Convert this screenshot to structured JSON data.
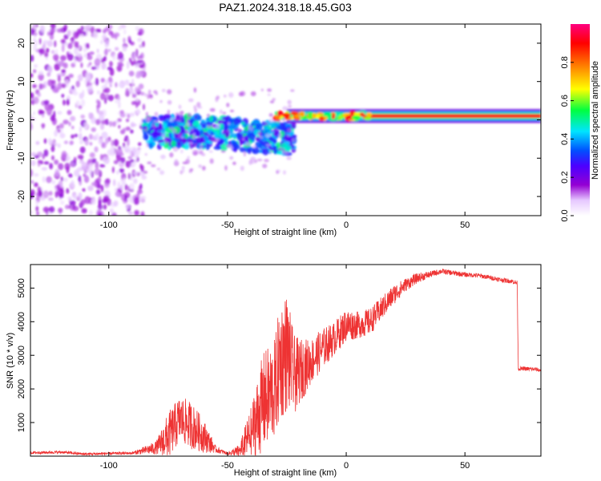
{
  "title": "PAZ1.2024.318.18.45.G03",
  "chart_data": [
    {
      "type": "heatmap",
      "xlabel": "Height of straight line (km)",
      "ylabel": "Frequency (Hz)",
      "xlim": [
        -133,
        82
      ],
      "ylim": [
        -25,
        25
      ],
      "xticks": [
        -100,
        -50,
        0,
        50
      ],
      "yticks": [
        -20,
        -10,
        0,
        10,
        20
      ],
      "colorbar": {
        "label": "Normalized spectral amplitude",
        "range": [
          0,
          1
        ],
        "ticks": [
          0,
          0.2,
          0.4,
          0.6,
          0.8
        ],
        "tick_labels": [
          "0.0",
          "0.2",
          "0.4",
          "0.6",
          "0.8"
        ],
        "colormap": [
          "#ffffff",
          "#9400d3",
          "#4b00ff",
          "#0050ff",
          "#00e5ff",
          "#00ff40",
          "#ffff00",
          "#ff8000",
          "#ff0000",
          "#ff0080"
        ]
      },
      "features": [
        {
          "x_range": [
            -133,
            -85
          ],
          "freq_range": [
            -25,
            25
          ],
          "level": 0.15,
          "pattern": "diffuse noise"
        },
        {
          "x_range": [
            -85,
            -22
          ],
          "freq_center": -3,
          "freq_halfwidth": 4,
          "level": 0.35,
          "pattern": "scattered blobs"
        },
        {
          "x_range": [
            -30,
            82
          ],
          "freq_center": 1,
          "freq_halfwidth": 1,
          "level": 0.9,
          "pattern": "narrow tone"
        }
      ]
    },
    {
      "type": "line",
      "xlabel": "Height of straight line (km)",
      "ylabel": "SNR (10 * v/v)",
      "xlim": [
        -133,
        82
      ],
      "ylim": [
        0,
        5700
      ],
      "xticks": [
        -100,
        -50,
        0,
        50
      ],
      "yticks": [
        1000,
        2000,
        3000,
        4000,
        5000
      ],
      "color": "#ee3333",
      "series": [
        {
          "name": "",
          "x": [
            -133,
            -120,
            -110,
            -100,
            -90,
            -80,
            -75,
            -70,
            -65,
            -60,
            -55,
            -50,
            -45,
            -40,
            -35,
            -30,
            -28,
            -25,
            -22,
            -20,
            -15,
            -10,
            -5,
            0,
            5,
            10,
            15,
            20,
            25,
            30,
            35,
            40,
            45,
            50,
            55,
            60,
            65,
            70,
            72,
            72.5,
            75,
            80,
            82
          ],
          "y": [
            100,
            120,
            60,
            80,
            90,
            250,
            600,
            1100,
            900,
            600,
            200,
            80,
            150,
            700,
            1600,
            2000,
            2800,
            3100,
            2400,
            2500,
            2800,
            3200,
            3500,
            3900,
            3900,
            4000,
            4400,
            4800,
            5100,
            5300,
            5400,
            5500,
            5450,
            5400,
            5380,
            5320,
            5250,
            5200,
            5150,
            2600,
            2600,
            2580,
            2550
          ],
          "noise": [
            40,
            40,
            40,
            40,
            40,
            200,
            700,
            700,
            700,
            500,
            100,
            40,
            200,
            800,
            1500,
            1500,
            1800,
            1800,
            1200,
            1000,
            700,
            600,
            500,
            500,
            400,
            400,
            350,
            300,
            200,
            150,
            100,
            80,
            80,
            70,
            70,
            70,
            70,
            70,
            70,
            60,
            60,
            60,
            60
          ]
        }
      ]
    }
  ]
}
